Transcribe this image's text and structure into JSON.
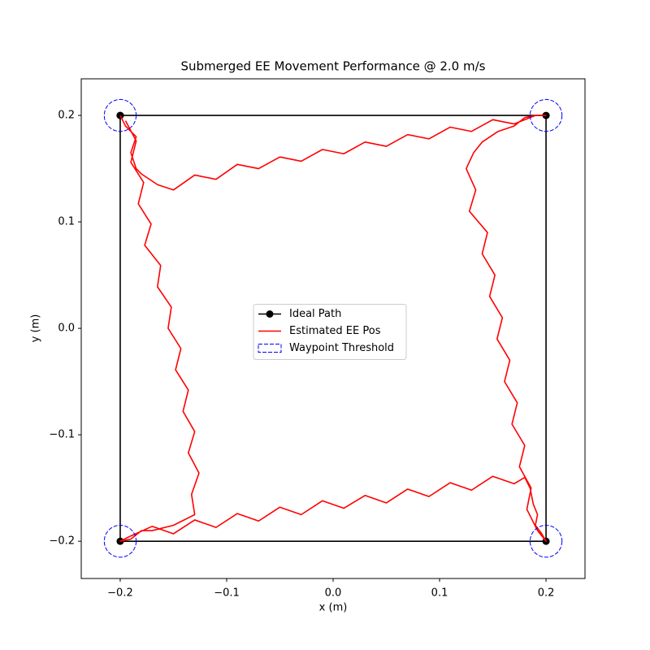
{
  "chart_data": {
    "type": "line",
    "title": "Submerged EE Movement Performance @ 2.0 m/s",
    "xlabel": "x (m)",
    "ylabel": "y (m)",
    "xlim": [
      -0.2366,
      0.2366
    ],
    "ylim": [
      -0.235,
      0.2344
    ],
    "xticks": [
      {
        "value": -0.2,
        "label": "−0.2"
      },
      {
        "value": -0.1,
        "label": "−0.1"
      },
      {
        "value": 0,
        "label": "0.0"
      },
      0.1,
      0.2
    ],
    "yticks": [
      {
        "value": -0.2,
        "label": "−0.2"
      },
      {
        "value": -0.1,
        "label": "−0.1"
      },
      {
        "value": 0,
        "label": "0.0"
      },
      0.1,
      0.2
    ],
    "legend": "center",
    "series": [
      {
        "name": "Ideal Path",
        "color": "#000000",
        "marker": "o",
        "x": [
          -0.2,
          0.2,
          0.2,
          -0.2,
          -0.2
        ],
        "values": [
          0.2,
          0.2,
          -0.2,
          -0.2,
          0.2
        ]
      },
      {
        "name": "Estimated EE Pos",
        "color": "#ff0000",
        "x": [
          -0.195,
          -0.185,
          -0.19,
          -0.178,
          -0.183,
          -0.171,
          -0.177,
          -0.162,
          -0.165,
          -0.152,
          -0.155,
          -0.143,
          -0.148,
          -0.136,
          -0.141,
          -0.13,
          -0.136,
          -0.126,
          -0.133,
          -0.13,
          -0.15,
          -0.17,
          -0.18,
          -0.19,
          -0.2,
          -0.19,
          -0.17,
          -0.15,
          -0.13,
          -0.11,
          -0.09,
          -0.07,
          -0.05,
          -0.03,
          -0.01,
          0.01,
          0.03,
          0.05,
          0.07,
          0.09,
          0.11,
          0.13,
          0.15,
          0.17,
          0.18,
          0.185,
          0.188,
          0.192,
          0.19,
          0.196,
          0.2,
          0.192,
          0.182,
          0.186,
          0.175,
          0.18,
          0.168,
          0.173,
          0.161,
          0.166,
          0.154,
          0.159,
          0.147,
          0.152,
          0.14,
          0.145,
          0.128,
          0.134,
          0.125,
          0.132,
          0.14,
          0.155,
          0.17,
          0.18,
          0.19,
          0.2,
          0.19,
          0.17,
          0.15,
          0.13,
          0.11,
          0.09,
          0.07,
          0.05,
          0.03,
          0.01,
          -0.01,
          -0.03,
          -0.05,
          -0.07,
          -0.09,
          -0.11,
          -0.13,
          -0.15,
          -0.165,
          -0.18,
          -0.185,
          -0.19,
          -0.185,
          -0.195,
          -0.2
        ],
        "values": [
          0.195,
          0.176,
          0.156,
          0.137,
          0.117,
          0.098,
          0.078,
          0.059,
          0.039,
          0.02,
          0,
          -0.019,
          -0.039,
          -0.058,
          -0.078,
          -0.097,
          -0.117,
          -0.136,
          -0.156,
          -0.175,
          -0.185,
          -0.19,
          -0.19,
          -0.198,
          -0.2,
          -0.195,
          -0.186,
          -0.193,
          -0.18,
          -0.187,
          -0.174,
          -0.181,
          -0.168,
          -0.175,
          -0.162,
          -0.169,
          -0.157,
          -0.164,
          -0.151,
          -0.158,
          -0.145,
          -0.152,
          -0.139,
          -0.146,
          -0.14,
          -0.15,
          -0.165,
          -0.175,
          -0.185,
          -0.193,
          -0.2,
          -0.19,
          -0.17,
          -0.15,
          -0.13,
          -0.11,
          -0.09,
          -0.07,
          -0.05,
          -0.03,
          -0.01,
          0.01,
          0.03,
          0.05,
          0.07,
          0.09,
          0.11,
          0.13,
          0.15,
          0.165,
          0.175,
          0.185,
          0.19,
          0.198,
          0.2,
          0.2,
          0.2,
          0.192,
          0.196,
          0.185,
          0.189,
          0.178,
          0.182,
          0.171,
          0.175,
          0.164,
          0.168,
          0.157,
          0.161,
          0.15,
          0.154,
          0.14,
          0.144,
          0.13,
          0.135,
          0.145,
          0.15,
          0.165,
          0.18,
          0.19,
          0.2
        ]
      },
      {
        "name": "Waypoint Threshold",
        "color": "#0000ff",
        "dashed": true,
        "x": [
          -0.2,
          0.2,
          0.2,
          -0.2
        ],
        "values": [
          0.2,
          0.2,
          -0.2,
          -0.2
        ],
        "radius": 0.015
      }
    ]
  }
}
